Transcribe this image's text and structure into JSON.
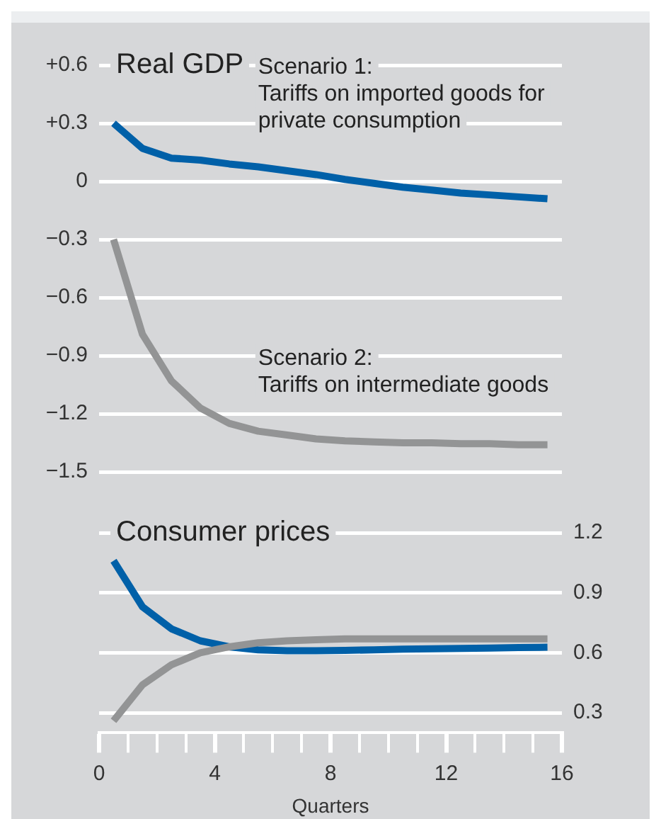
{
  "chart_data": [
    {
      "type": "line",
      "title": "Real GDP",
      "x": [
        0.5,
        1.5,
        2.5,
        3.5,
        4.5,
        5.5,
        6.5,
        7.5,
        8.5,
        9.5,
        10.5,
        11.5,
        12.5,
        13.5,
        14.5,
        15.5
      ],
      "series": [
        {
          "name": "Scenario 1: Tariffs on imported goods for private consumption",
          "color": "#0060a8",
          "values": [
            0.3,
            0.17,
            0.12,
            0.11,
            0.09,
            0.075,
            0.055,
            0.035,
            0.01,
            -0.01,
            -0.03,
            -0.045,
            -0.06,
            -0.07,
            -0.08,
            -0.09
          ]
        },
        {
          "name": "Scenario 2: Tariffs on intermediate goods",
          "color": "#939495",
          "values": [
            -0.3,
            -0.79,
            -1.03,
            -1.17,
            -1.25,
            -1.29,
            -1.31,
            -1.33,
            -1.34,
            -1.345,
            -1.35,
            -1.35,
            -1.355,
            -1.355,
            -1.36,
            -1.36
          ]
        }
      ],
      "xlim": [
        0,
        16
      ],
      "ylim": [
        -1.5,
        0.6
      ],
      "yticks": [
        {
          "value": 0.6,
          "label": "+0.6"
        },
        {
          "value": 0.3,
          "label": "+0.3"
        },
        0,
        {
          "value": -0.3,
          "label": "−0.3"
        },
        {
          "value": -0.6,
          "label": "−0.6"
        },
        {
          "value": -0.9,
          "label": "−0.9"
        },
        {
          "value": -1.2,
          "label": "−1.2"
        },
        {
          "value": -1.5,
          "label": "−1.5"
        }
      ],
      "grid": "y",
      "tick_labels": "y",
      "line_style": "solid",
      "marker": "none",
      "legend": false
    },
    {
      "type": "line",
      "title": "Consumer prices",
      "xlabel": "Quarters",
      "x": [
        0.5,
        1.5,
        2.5,
        3.5,
        4.5,
        5.5,
        6.5,
        7.5,
        8.5,
        9.5,
        10.5,
        11.5,
        12.5,
        13.5,
        14.5,
        15.5
      ],
      "series": [
        {
          "color": "#939495",
          "axis": "y2",
          "values": [
            0.26,
            0.44,
            0.54,
            0.6,
            0.63,
            0.65,
            0.66,
            0.665,
            0.67,
            0.67,
            0.67,
            0.67,
            0.67,
            0.67,
            0.67,
            0.67
          ]
        },
        {
          "color": "#0060a8",
          "axis": "y2",
          "values": [
            1.06,
            0.83,
            0.72,
            0.66,
            0.63,
            0.615,
            0.61,
            0.61,
            0.612,
            0.615,
            0.618,
            0.62,
            0.622,
            0.624,
            0.626,
            0.628
          ]
        }
      ],
      "xlim": [
        0,
        16
      ],
      "xticks": [
        0,
        {
          "value": 1,
          "label": null
        },
        {
          "value": 2,
          "label": null
        },
        {
          "value": 3,
          "label": null
        },
        4,
        {
          "value": 5,
          "label": null
        },
        {
          "value": 6,
          "label": null
        },
        {
          "value": 7,
          "label": null
        },
        8,
        {
          "value": 9,
          "label": null
        },
        {
          "value": 10,
          "label": null
        },
        {
          "value": 11,
          "label": null
        },
        12,
        {
          "value": 13,
          "label": null
        },
        {
          "value": 14,
          "label": null
        },
        {
          "value": 15,
          "label": null
        },
        16
      ],
      "y2lim": [
        0.2,
        1.2
      ],
      "y2ticks": [
        0.3,
        0.6,
        0.9,
        1.2
      ],
      "grid": "y",
      "line_style": "solid",
      "marker": "none",
      "legend": false
    }
  ]
}
